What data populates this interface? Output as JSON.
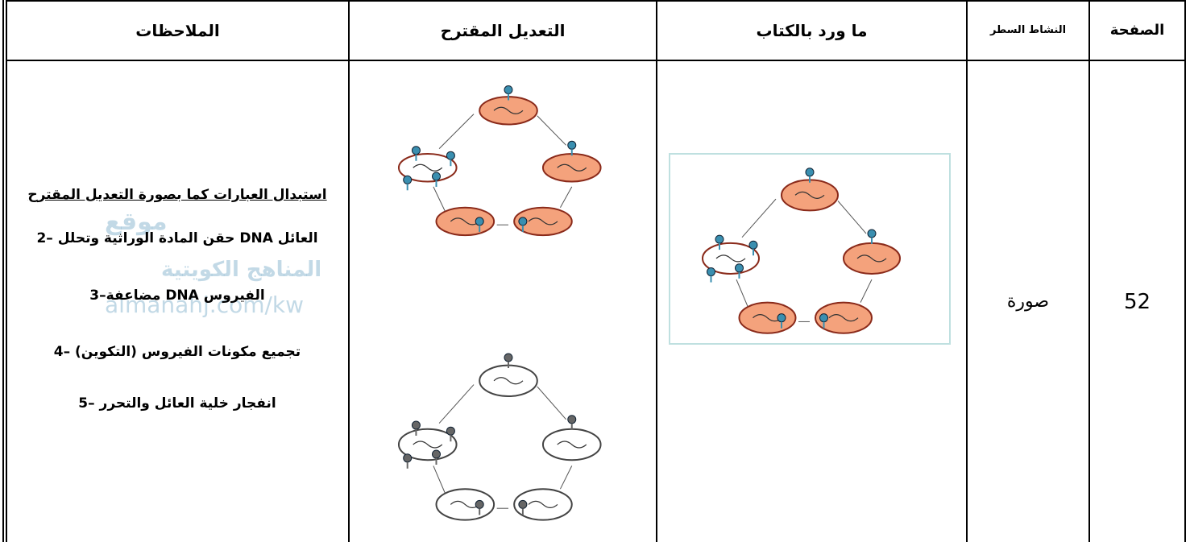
{
  "table": {
    "headers": [
      "الصفحة",
      "النشاط السطر",
      "ما ورد بالكتاب",
      "التعديل المقترح",
      "الملاحظات"
    ],
    "rows": [
      {
        "page": "52",
        "activity": "صورة",
        "notes": [
          "استبدال العبارات كما بصورة التعديل المقترح",
          "2– حقن المادة الوراثية وتحلل DNA العائل",
          "3–مضاعفة DNA الفيروس",
          "4– تجميع مكونات الفيروس (التكوين)",
          "5– انفجار خلية العائل والتحرر"
        ]
      }
    ]
  },
  "watermark": [
    "موقع",
    "المناهج الكويتية",
    "almanahj.com/kw"
  ]
}
